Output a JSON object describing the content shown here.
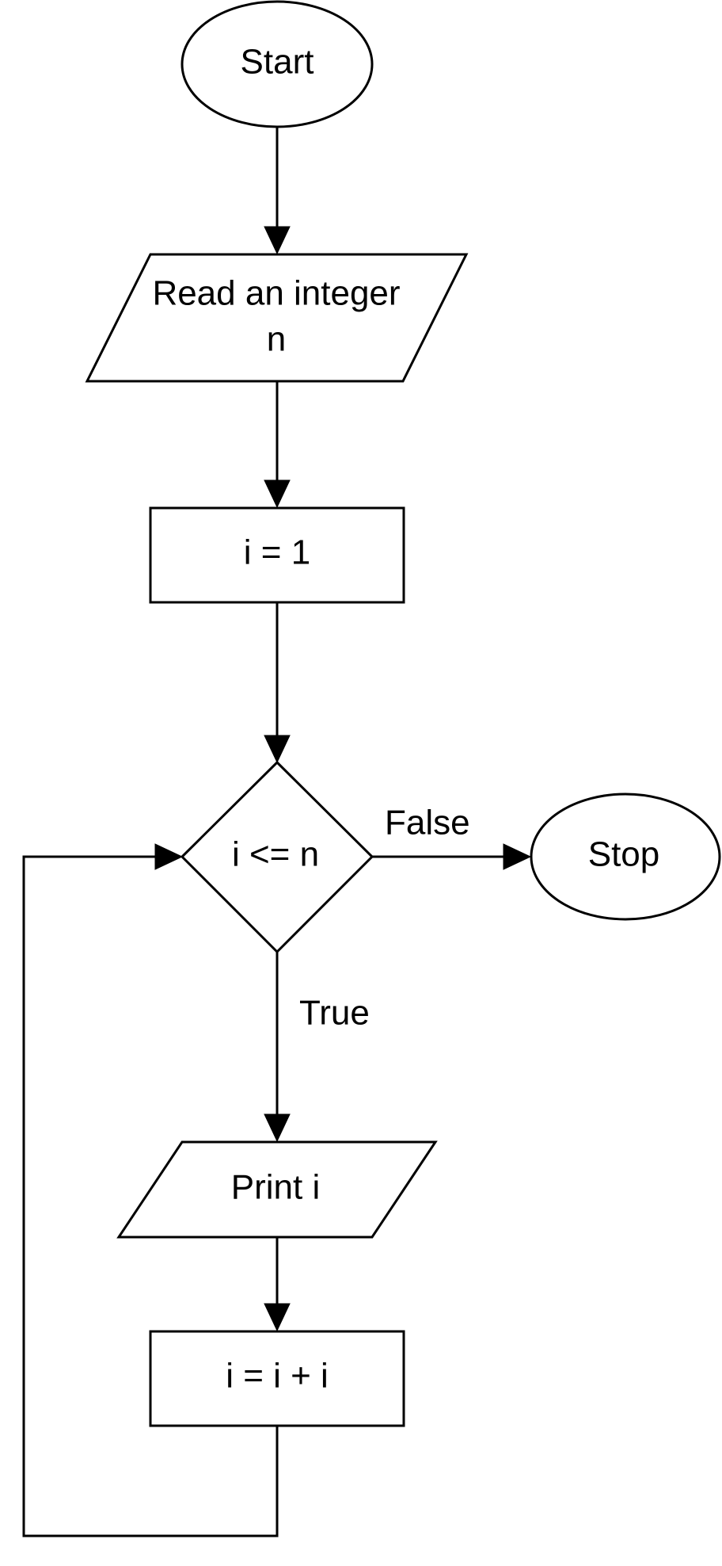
{
  "nodes": {
    "start": {
      "label": "Start",
      "shape": "ellipse"
    },
    "read": {
      "label_line1": "Read an integer",
      "label_line2": "n",
      "shape": "parallelogram"
    },
    "init": {
      "label": "i = 1",
      "shape": "rectangle"
    },
    "decision": {
      "label": "i <= n",
      "shape": "diamond"
    },
    "stop": {
      "label": "Stop",
      "shape": "ellipse"
    },
    "print": {
      "label": "Print i",
      "shape": "parallelogram"
    },
    "increment": {
      "label": "i = i + i",
      "shape": "rectangle"
    }
  },
  "edges": {
    "false_label": "False",
    "true_label": "True"
  },
  "colors": {
    "stroke": "#000000",
    "background": "#ffffff"
  }
}
